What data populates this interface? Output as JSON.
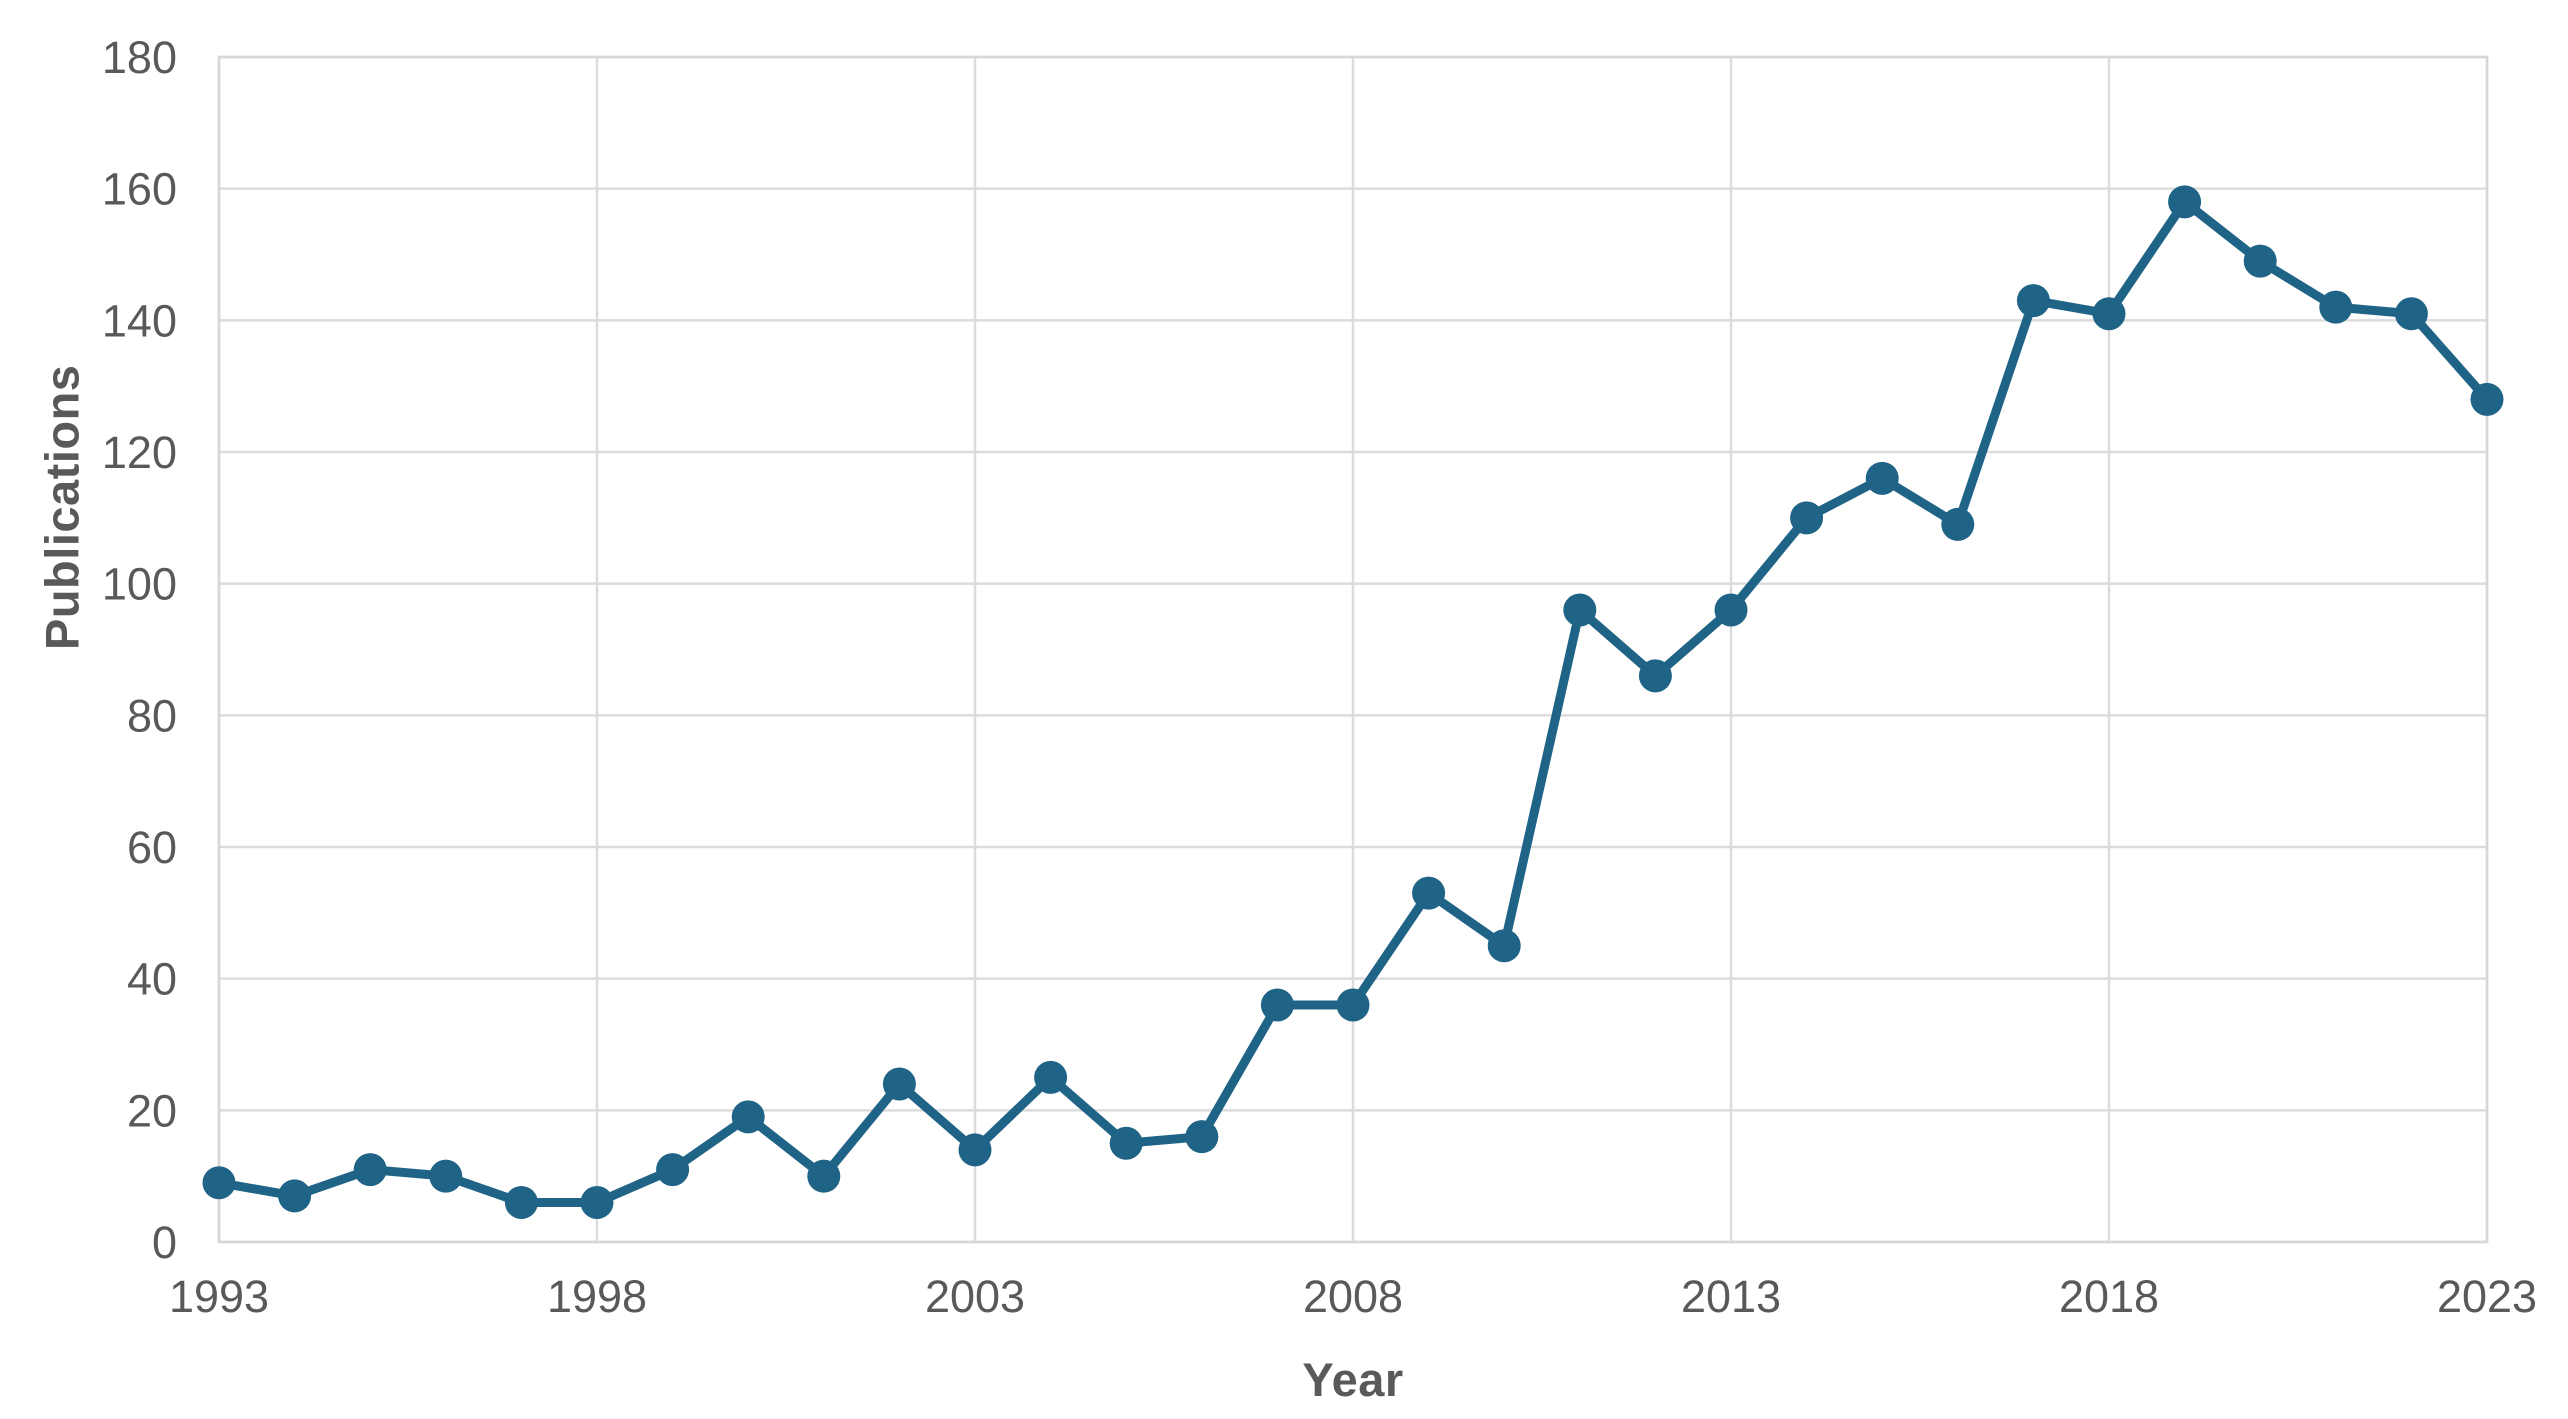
{
  "chart_data": {
    "type": "line",
    "title": "",
    "xlabel": "Year",
    "ylabel": "Publications",
    "x": [
      1993,
      1994,
      1995,
      1996,
      1997,
      1998,
      1999,
      2000,
      2001,
      2002,
      2003,
      2004,
      2005,
      2006,
      2007,
      2008,
      2009,
      2010,
      2011,
      2012,
      2013,
      2014,
      2015,
      2016,
      2017,
      2018,
      2019,
      2020,
      2021,
      2022,
      2023
    ],
    "series": [
      {
        "name": "Publications",
        "values": [
          9,
          7,
          11,
          10,
          6,
          6,
          11,
          19,
          10,
          24,
          14,
          25,
          15,
          16,
          36,
          36,
          53,
          45,
          96,
          86,
          96,
          110,
          116,
          109,
          143,
          141,
          158,
          149,
          142,
          141,
          128
        ]
      }
    ],
    "xlim": [
      1993,
      2023
    ],
    "ylim": [
      0,
      180
    ],
    "xticks": [
      1993,
      1998,
      2003,
      2008,
      2013,
      2018,
      2023
    ],
    "yticks": [
      0,
      20,
      40,
      60,
      80,
      100,
      120,
      140,
      160,
      180
    ],
    "grid": true,
    "legend": "none",
    "marker": "circle",
    "colors": {
      "line": "#1f6386",
      "marker": "#1f6386",
      "grid": "#dcdcdc",
      "frame": "#d7d7d7",
      "tick_label": "#595959",
      "axis_title": "#595959",
      "background": "#ffffff"
    }
  }
}
